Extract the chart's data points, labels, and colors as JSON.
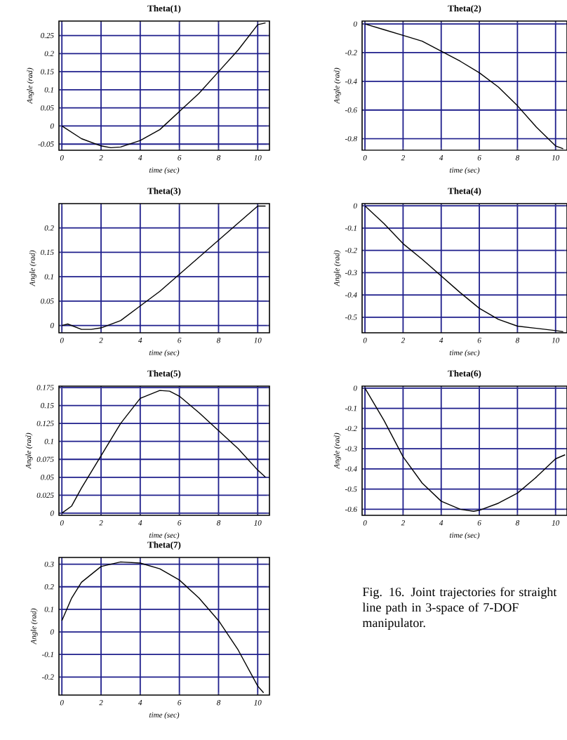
{
  "chart_data": [
    {
      "type": "line",
      "title": "Theta(1)",
      "xlabel": "time (sec)",
      "ylabel": "Angle (rad)",
      "grid": true,
      "xlim": [
        -0.15,
        10.6
      ],
      "ylim": [
        -0.067,
        0.29
      ],
      "xticks": [
        0,
        2,
        4,
        6,
        8,
        10
      ],
      "yticks": [
        -0.05,
        0,
        0.05,
        0.1,
        0.15,
        0.2,
        0.25
      ],
      "series": [
        {
          "color": "#000000",
          "x": [
            0,
            1,
            2,
            2.5,
            3,
            4,
            5,
            6,
            7,
            8,
            9,
            10,
            10.4
          ],
          "values": [
            0,
            -0.035,
            -0.055,
            -0.06,
            -0.058,
            -0.04,
            -0.01,
            0.04,
            0.09,
            0.15,
            0.21,
            0.28,
            0.285
          ]
        }
      ]
    },
    {
      "type": "line",
      "title": "Theta(2)",
      "xlabel": "time (sec)",
      "ylabel": "Angle (rad)",
      "grid": true,
      "xlim": [
        -0.15,
        10.6
      ],
      "ylim": [
        -0.88,
        0.02
      ],
      "xticks": [
        0,
        2,
        4,
        6,
        8,
        10
      ],
      "yticks": [
        -0.8,
        -0.6,
        -0.4,
        -0.2,
        0
      ],
      "series": [
        {
          "color": "#000000",
          "x": [
            0,
            1,
            2,
            3,
            4,
            5,
            6,
            7,
            8,
            9,
            10,
            10.4
          ],
          "values": [
            0,
            -0.04,
            -0.08,
            -0.12,
            -0.19,
            -0.26,
            -0.34,
            -0.44,
            -0.57,
            -0.72,
            -0.85,
            -0.87
          ]
        }
      ]
    },
    {
      "type": "line",
      "title": "Theta(3)",
      "xlabel": "time (sec)",
      "ylabel": "Angle (rad)",
      "grid": true,
      "xlim": [
        -0.15,
        10.6
      ],
      "ylim": [
        -0.015,
        0.25
      ],
      "xticks": [
        0,
        2,
        4,
        6,
        8,
        10
      ],
      "yticks": [
        0,
        0.05,
        0.1,
        0.15,
        0.2
      ],
      "series": [
        {
          "color": "#000000",
          "x": [
            0,
            0.3,
            1,
            1.5,
            2,
            3,
            4,
            5,
            6,
            7,
            8,
            9,
            10,
            10.4
          ],
          "values": [
            0,
            0.003,
            -0.008,
            -0.008,
            -0.005,
            0.01,
            0.04,
            0.07,
            0.105,
            0.14,
            0.175,
            0.21,
            0.245,
            0.245
          ]
        }
      ]
    },
    {
      "type": "line",
      "title": "Theta(4)",
      "xlabel": "time (sec)",
      "ylabel": "Angle (rad)",
      "grid": true,
      "xlim": [
        -0.15,
        10.6
      ],
      "ylim": [
        -0.57,
        0.01
      ],
      "xticks": [
        0,
        2,
        4,
        6,
        8,
        10
      ],
      "yticks": [
        -0.5,
        -0.4,
        -0.3,
        -0.2,
        -0.1,
        0
      ],
      "series": [
        {
          "color": "#000000",
          "x": [
            0,
            1,
            2,
            3,
            4,
            5,
            6,
            7,
            8,
            9,
            10,
            10.4
          ],
          "values": [
            0,
            -0.08,
            -0.17,
            -0.24,
            -0.315,
            -0.39,
            -0.46,
            -0.51,
            -0.54,
            -0.55,
            -0.56,
            -0.565
          ]
        }
      ]
    },
    {
      "type": "line",
      "title": "Theta(5)",
      "xlabel": "time (sec)",
      "ylabel": "Angle (rad)",
      "grid": true,
      "xlim": [
        -0.15,
        10.6
      ],
      "ylim": [
        -0.003,
        0.177
      ],
      "xticks": [
        0,
        2,
        4,
        6,
        8,
        10
      ],
      "yticks": [
        0,
        0.025,
        0.05,
        0.075,
        0.1,
        0.125,
        0.15,
        0.175
      ],
      "series": [
        {
          "color": "#000000",
          "x": [
            0,
            0.5,
            1,
            2,
            3,
            4,
            5,
            5.5,
            6,
            7,
            8,
            9,
            10,
            10.4
          ],
          "values": [
            0,
            0.01,
            0.035,
            0.08,
            0.125,
            0.16,
            0.171,
            0.17,
            0.163,
            0.14,
            0.115,
            0.09,
            0.06,
            0.05
          ]
        }
      ]
    },
    {
      "type": "line",
      "title": "Theta(6)",
      "xlabel": "time (sec)",
      "ylabel": "Angle (rad)",
      "grid": true,
      "xlim": [
        -0.15,
        10.6
      ],
      "ylim": [
        -0.63,
        0.01
      ],
      "xticks": [
        0,
        2,
        4,
        6,
        8,
        10
      ],
      "yticks": [
        -0.6,
        -0.5,
        -0.4,
        -0.3,
        -0.2,
        -0.1,
        0
      ],
      "series": [
        {
          "color": "#000000",
          "x": [
            0,
            1,
            2,
            3,
            4,
            5,
            5.7,
            6,
            7,
            8,
            9,
            10,
            10.5
          ],
          "values": [
            0,
            -0.16,
            -0.34,
            -0.47,
            -0.56,
            -0.6,
            -0.61,
            -0.605,
            -0.57,
            -0.52,
            -0.44,
            -0.35,
            -0.33
          ]
        }
      ]
    },
    {
      "type": "line",
      "title": "Theta(7)",
      "xlabel": "time (sec)",
      "ylabel": "Angle (rad)",
      "grid": true,
      "xlim": [
        -0.15,
        10.6
      ],
      "ylim": [
        -0.28,
        0.33
      ],
      "xticks": [
        0,
        2,
        4,
        6,
        8,
        10
      ],
      "yticks": [
        -0.2,
        -0.1,
        0,
        0.1,
        0.2,
        0.3
      ],
      "series": [
        {
          "color": "#000000",
          "x": [
            0,
            0.5,
            1,
            2,
            3,
            4,
            5,
            6,
            7,
            8,
            9,
            10,
            10.3
          ],
          "values": [
            0.05,
            0.15,
            0.22,
            0.29,
            0.31,
            0.305,
            0.28,
            0.23,
            0.15,
            0.05,
            -0.08,
            -0.24,
            -0.27
          ]
        }
      ]
    },
    {
      "type": "other",
      "annotations": [
        "Fig. 16. Joint trajectories for straight line path in 3-space of 7-DOF manipulator."
      ]
    }
  ]
}
